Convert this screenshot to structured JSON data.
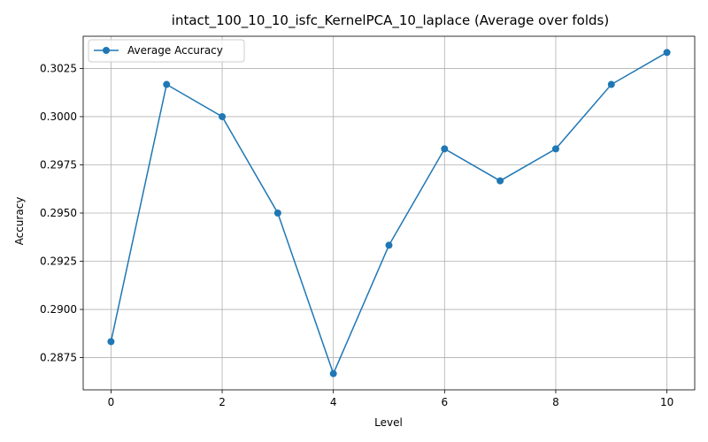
{
  "chart_data": {
    "type": "line",
    "title": "intact_100_10_10_isfc_KernelPCA_10_laplace (Average over folds)",
    "xlabel": "Level",
    "ylabel": "Accuracy",
    "xlim": [
      -0.5,
      10.5
    ],
    "ylim": [
      0.28583,
      0.30417
    ],
    "xticks": [
      0,
      2,
      4,
      6,
      8,
      10
    ],
    "xtick_labels": [
      "0",
      "2",
      "4",
      "6",
      "8",
      "10"
    ],
    "yticks": [
      0.2875,
      0.29,
      0.2925,
      0.295,
      0.2975,
      0.3,
      0.3025
    ],
    "ytick_labels": [
      "0.2875",
      "0.2900",
      "0.2925",
      "0.2950",
      "0.2975",
      "0.3000",
      "0.3025"
    ],
    "grid": true,
    "legend_position": "top-left",
    "series": [
      {
        "name": "Average Accuracy",
        "color": "#1f77b4",
        "marker": "circle",
        "x": [
          0,
          1,
          2,
          3,
          4,
          5,
          6,
          7,
          8,
          9,
          10
        ],
        "values": [
          0.28833,
          0.30167,
          0.3,
          0.295,
          0.28667,
          0.29333,
          0.29833,
          0.29667,
          0.29833,
          0.30167,
          0.30333
        ]
      }
    ]
  }
}
